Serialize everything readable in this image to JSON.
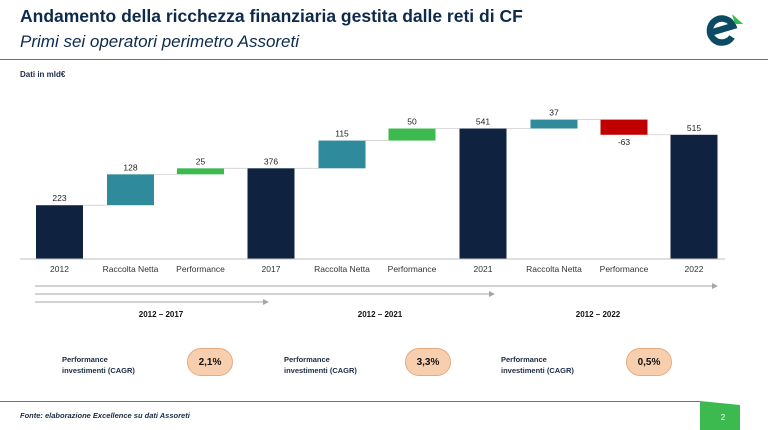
{
  "header": {
    "title": "Andamento della ricchezza finanziaria gestita dalle reti di CF",
    "subtitle": "Primi sei operatori perimetro Assoreti"
  },
  "unit_label": "Dati in mld€",
  "chart_data": {
    "type": "bar",
    "subtype": "waterfall",
    "categories": [
      "2012",
      "Raccolta Netta",
      "Performance",
      "2017",
      "Raccolta Netta",
      "Performance",
      "2021",
      "Raccolta Netta",
      "Performance",
      "2022"
    ],
    "values": [
      223,
      128,
      25,
      376,
      115,
      50,
      541,
      37,
      -63,
      515
    ],
    "value_labels": [
      "223",
      "128",
      "25",
      "376",
      "115",
      "50",
      "541",
      "37",
      "-63",
      "515"
    ],
    "kinds": [
      "total",
      "delta",
      "delta",
      "total",
      "delta",
      "delta",
      "total",
      "delta",
      "delta",
      "total"
    ],
    "colors": {
      "total": "#0f2340",
      "raccolta": "#2f8a9c",
      "performance_positive": "#3dba4f",
      "negative": "#c00000"
    },
    "ylim": [
      0,
      600
    ]
  },
  "periods": [
    {
      "label": "2012 – 2017"
    },
    {
      "label": "2012 – 2021"
    },
    {
      "label": "2012 – 2022"
    }
  ],
  "cagr": [
    {
      "label_line1": "Performance",
      "label_line2": "investimenti (CAGR)",
      "value": "2,1%"
    },
    {
      "label_line1": "Performance",
      "label_line2": "investimenti (CAGR)",
      "value": "3,3%"
    },
    {
      "label_line1": "Performance",
      "label_line2": "investimenti (CAGR)",
      "value": "0,5%"
    }
  ],
  "footer": {
    "source": "Fonte: elaborazione Excellence su dati Assoreti",
    "page_number": "2"
  },
  "logo_icon": "excellence-e-logo-icon"
}
